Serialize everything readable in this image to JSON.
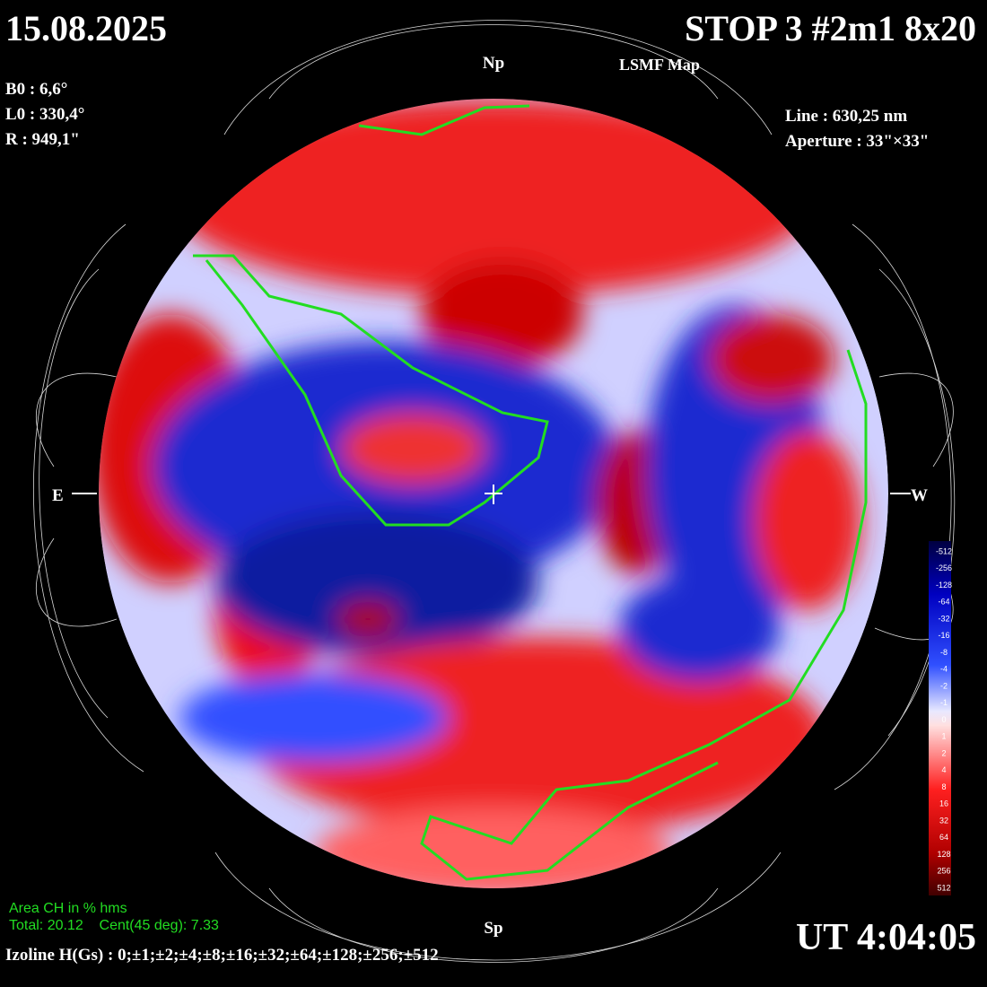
{
  "header": {
    "date": "15.08.2025",
    "title": "STOP 3 #2m1 8x20",
    "subtitle": "LSMF Map"
  },
  "params": [
    "B0 : 6,6°",
    "L0 : 330,4°",
    "R  : 949,1\""
  ],
  "instrument": [
    "Line :  630,25 nm",
    "Aperture : 33\"×33\""
  ],
  "directions": {
    "north": "Np",
    "south": "Sp",
    "east": "E",
    "west": "W"
  },
  "colorbar": {
    "labels": [
      "-512",
      "-256",
      "-128",
      "-64",
      "-32",
      "-16",
      "-8",
      "-4",
      "-2",
      "-1",
      "0",
      "1",
      "2",
      "4",
      "8",
      "16",
      "32",
      "64",
      "128",
      "256",
      "512"
    ]
  },
  "coronal_holes": {
    "title": "Area CH in % hms",
    "total": "Total: 20.12    Cent(45 deg): 7.33"
  },
  "footer": {
    "izoline": "Izoline H(Gs) : 0;±1;±2;±4;±8;±16;±32;±64;±128;±256;±512",
    "time": "UT 4:04:05"
  }
}
